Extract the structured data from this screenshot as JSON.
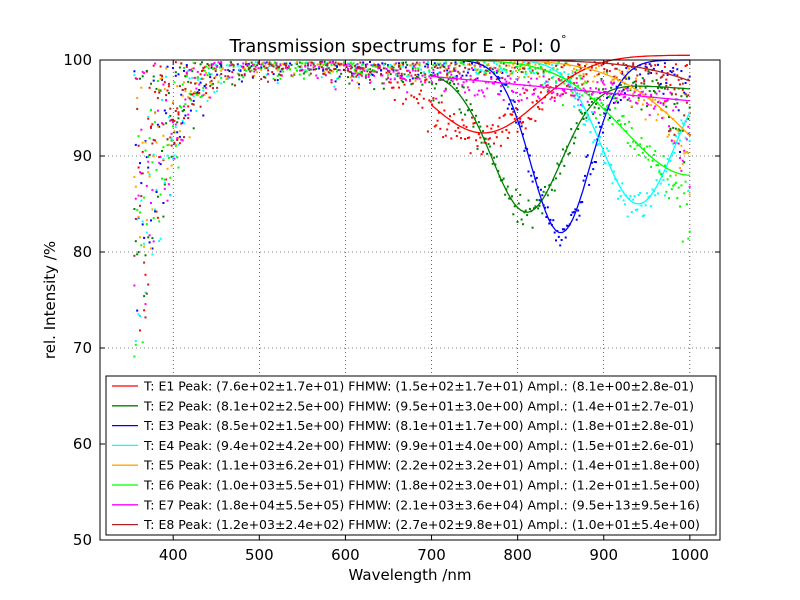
{
  "chart_data": {
    "type": "scatter",
    "title": "Transmission spectrums for E - Pol: 0",
    "title_superscript": "°",
    "xlabel": "Wavelength  /nm",
    "ylabel": "rel. Intensity  /%",
    "xlim": [
      315,
      1035
    ],
    "ylim": [
      50,
      100
    ],
    "xticks": [
      400,
      500,
      600,
      700,
      800,
      900,
      1000
    ],
    "yticks": [
      50,
      60,
      70,
      80,
      90,
      100
    ],
    "grid": true,
    "legend_position": "lower-center",
    "fit_range": [
      700,
      1000
    ],
    "series": [
      {
        "name": "T: E1 Peak: (7.6e+02±1.7e+01)  FHMW: (1.5e+02±1.7e+01)  Ampl.: (8.1e+00±2.8e-01)",
        "color": "#ff0000",
        "peak": 760,
        "fwhm": 150,
        "ampl": 8.1,
        "baseline": [
          100.5,
          0
        ],
        "noise": 1.2
      },
      {
        "name": "T: E2 Peak: (8.1e+02±2.5e+00)  FHMW: (9.5e+01±3.0e+00)  Ampl.: (1.4e+01±2.7e-01)",
        "color": "#008000",
        "peak": 810,
        "fwhm": 95,
        "ampl": 14,
        "baseline": [
          100,
          -0.006
        ],
        "noise": 1.0
      },
      {
        "name": "T: E3 Peak: (8.5e+02±1.5e+00)  FHMW: (8.1e+01±1.7e+00)  Ampl.: (1.8e+01±2.8e-01)",
        "color": "#0000ff",
        "peak": 850,
        "fwhm": 81,
        "ampl": 18,
        "baseline": [
          100,
          0
        ],
        "noise": 1.0
      },
      {
        "name": "T: E4 Peak: (9.4e+02±4.2e+00)  FHMW: (9.9e+01±4.0e+00)  Ampl.: (1.5e+01±2.6e-01)",
        "color": "#00ffff",
        "peak": 940,
        "fwhm": 99,
        "ampl": 15,
        "baseline": [
          100,
          0
        ],
        "noise": 1.0
      },
      {
        "name": "T: E5 Peak: (1.1e+03±6.2e+01)  FHMW: (2.2e+02±3.2e+01)  Ampl.: (1.4e+01±1.8e+00)",
        "color": "#ffa500",
        "peak": 1100,
        "fwhm": 220,
        "ampl": 14,
        "baseline": [
          100,
          0
        ],
        "noise": 1.0
      },
      {
        "name": "T: E6 Peak: (1.0e+03±5.5e+01)  FHMW: (1.8e+02±3.0e+01)  Ampl.: (1.2e+01±1.5e+00)",
        "color": "#00ff00",
        "peak": 1000,
        "fwhm": 180,
        "ampl": 12,
        "baseline": [
          100,
          0
        ],
        "noise": 1.0
      },
      {
        "name": "T: E7 Peak: (1.8e+04±5.5e+05)  FHMW: (2.1e+03±3.6e+04)  Ampl.: (9.5e+13±9.5e+16)",
        "color": "#ff00ff",
        "peak": null,
        "fwhm": null,
        "ampl": null,
        "baseline": [
          100,
          -0.0085
        ],
        "noise": 0.8
      },
      {
        "name": "T: E8 Peak: (1.2e+03±2.4e+02)  FHMW: (2.7e+02±9.8e+01)  Ampl.: (1.0e+01±5.4e+00)",
        "color": "#b22222",
        "peak": 1200,
        "fwhm": 270,
        "ampl": 10,
        "baseline": [
          100,
          0
        ],
        "noise": 1.0
      }
    ]
  }
}
